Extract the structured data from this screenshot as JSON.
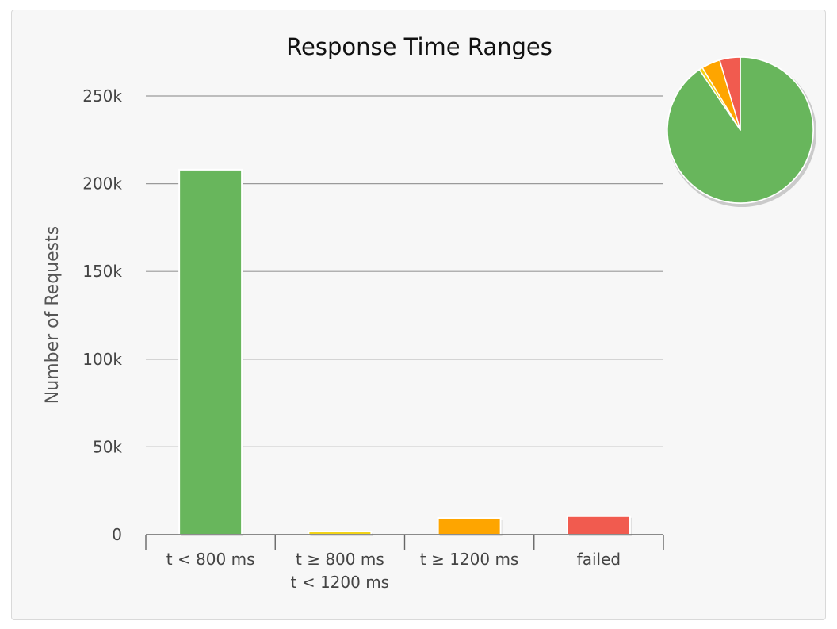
{
  "chart_data": {
    "type": "bar",
    "title": "Response Time Ranges",
    "xlabel": "",
    "ylabel": "Number of Requests",
    "ylim": [
      0,
      250000
    ],
    "y_ticks": [
      {
        "value": 0,
        "label": "0"
      },
      {
        "value": 50000,
        "label": "50k"
      },
      {
        "value": 100000,
        "label": "100k"
      },
      {
        "value": 150000,
        "label": "150k"
      },
      {
        "value": 200000,
        "label": "200k"
      },
      {
        "value": 250000,
        "label": "250k"
      }
    ],
    "grid": true,
    "categories": [
      {
        "name": "t < 800 ms",
        "label_lines": [
          "t < 800 ms"
        ],
        "value": 208000,
        "color": "#68b65c"
      },
      {
        "name": "t ≥ 800 ms t < 1200 ms",
        "label_lines": [
          "t ≥ 800 ms",
          "t < 1200 ms"
        ],
        "value": 1800,
        "color": "#f2d316"
      },
      {
        "name": "t ≥ 1200 ms",
        "label_lines": [
          "t ≥ 1200 ms"
        ],
        "value": 9500,
        "color": "#fea500"
      },
      {
        "name": "failed",
        "label_lines": [
          "failed"
        ],
        "value": 10500,
        "color": "#f15b4f"
      }
    ],
    "inset_pie": {
      "legend_position": "top-right",
      "slices": [
        {
          "name": "t < 800 ms",
          "value": 208000,
          "color": "#68b65c"
        },
        {
          "name": "t ≥ 800 ms t < 1200 ms",
          "value": 1800,
          "color": "#f2d316"
        },
        {
          "name": "t ≥ 1200 ms",
          "value": 9500,
          "color": "#fea500"
        },
        {
          "name": "failed",
          "value": 10500,
          "color": "#f15b4f"
        }
      ]
    }
  }
}
